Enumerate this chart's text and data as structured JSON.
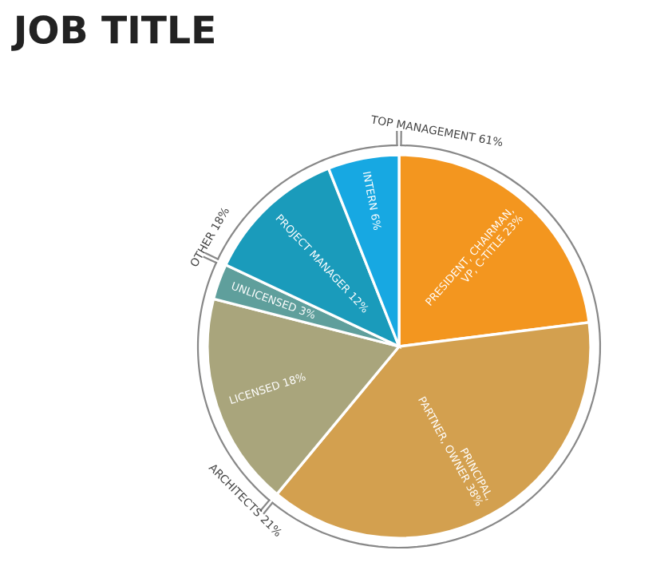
{
  "chart_data": {
    "type": "pie",
    "title": "JOB TITLE",
    "categories": [
      "PRESIDENT, CHAIRMAN, VP, C-TITLE",
      "PRINCIPAL, PARTNER, OWNER",
      "LICENSED",
      "UNLICENSED",
      "PROJECT MANAGER",
      "INTERN"
    ],
    "values": [
      23,
      38,
      18,
      3,
      12,
      6
    ],
    "value_labels": [
      "23%",
      "38%",
      "18%",
      "3%",
      "12%",
      "6%"
    ],
    "colors": [
      "#f3961f",
      "#d3a04f",
      "#a9a57c",
      "#5f9f9c",
      "#1a9bbb",
      "#17a8e2"
    ],
    "annotations": [
      "TOP MANAGEMENT 61%",
      "ARCHITECTS 21%",
      "OTHER 18%"
    ]
  }
}
